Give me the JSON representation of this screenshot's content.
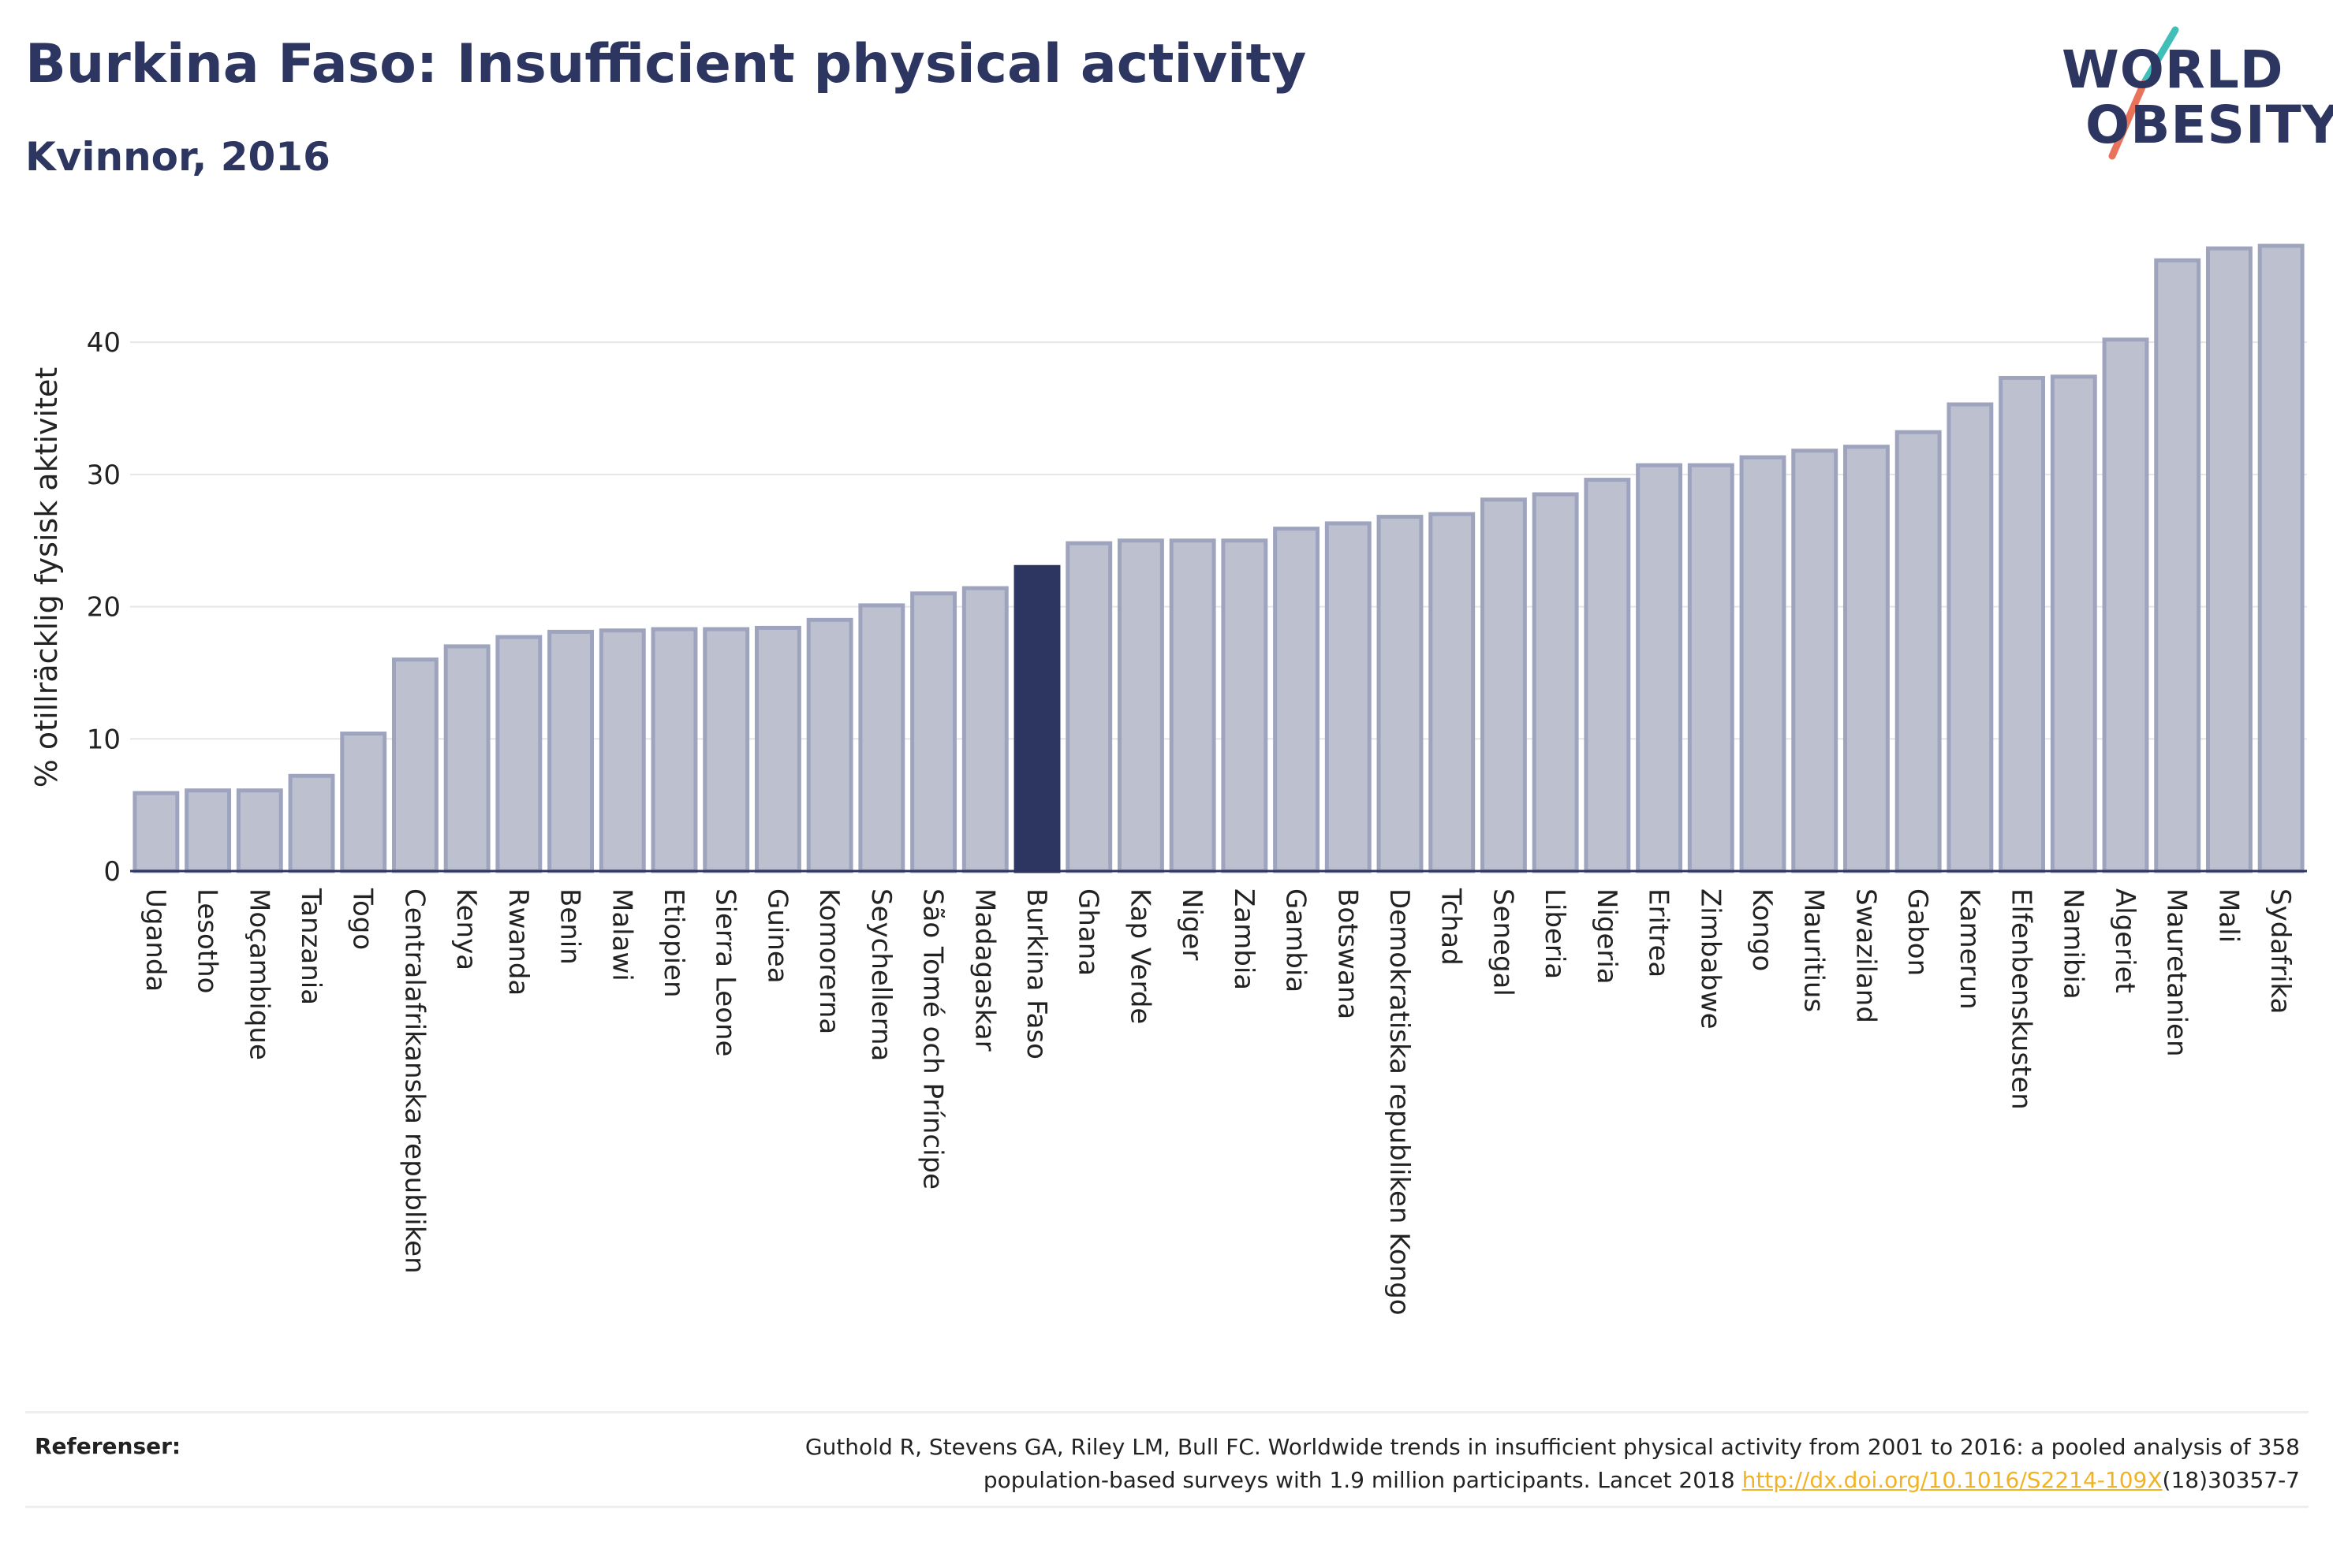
{
  "header": {
    "title": "Burkina Faso: Insufficient physical activity",
    "subtitle": "Kvinnor, 2016"
  },
  "logo": {
    "line1": "WORLD",
    "line2": "OBESITY",
    "accent_teal": "#3fbfb8",
    "accent_coral": "#e8735a"
  },
  "colors": {
    "bar": "#bcc0cf",
    "bar_border": "#9ea4bd",
    "highlight": "#2d3561",
    "text": "#2d3561"
  },
  "chart_data": {
    "type": "bar",
    "ylabel": "% otillräcklig fysisk aktivitet",
    "xlabel": "",
    "ylim": [
      0,
      48
    ],
    "yticks": [
      0,
      10,
      20,
      30,
      40
    ],
    "grid": true,
    "highlight": "Burkina Faso",
    "categories": [
      "Uganda",
      "Lesotho",
      "Moçambique",
      "Tanzania",
      "Togo",
      "Centralafrikanska republiken",
      "Kenya",
      "Rwanda",
      "Benin",
      "Malawi",
      "Etiopien",
      "Sierra Leone",
      "Guinea",
      "Komorerna",
      "Seychellerna",
      "São Tomé och Príncipe",
      "Madagaskar",
      "Burkina Faso",
      "Ghana",
      "Kap Verde",
      "Niger",
      "Zambia",
      "Gambia",
      "Botswana",
      "Demokratiska republiken Kongo",
      "Tchad",
      "Senegal",
      "Liberia",
      "Nigeria",
      "Eritrea",
      "Zimbabwe",
      "Kongo",
      "Mauritius",
      "Swaziland",
      "Gabon",
      "Kamerun",
      "Elfenbenskusten",
      "Namibia",
      "Algeriet",
      "Mauretanien",
      "Mali",
      "Sydafrika"
    ],
    "values": [
      5.9,
      6.1,
      6.1,
      7.2,
      10.4,
      16.0,
      17.0,
      17.7,
      18.1,
      18.2,
      18.3,
      18.3,
      18.4,
      19.0,
      20.1,
      21.0,
      21.4,
      23.0,
      24.8,
      25.0,
      25.0,
      25.0,
      25.9,
      26.3,
      26.8,
      27.0,
      28.1,
      28.5,
      29.6,
      30.7,
      30.7,
      31.3,
      31.8,
      32.1,
      33.2,
      35.3,
      37.3,
      37.4,
      40.2,
      46.2,
      47.1,
      47.3
    ]
  },
  "references": {
    "label": "Referenser:",
    "line1": "Guthold R, Stevens GA, Riley LM, Bull FC. Worldwide trends in insufficient physical activity from 2001 to 2016: a pooled analysis of 358",
    "line2_before": "population-based surveys with 1.9 million participants. Lancet 2018 ",
    "link": "http://dx.doi.org/10.1016/S2214-109X",
    "line2_after": "(18)30357-7"
  }
}
